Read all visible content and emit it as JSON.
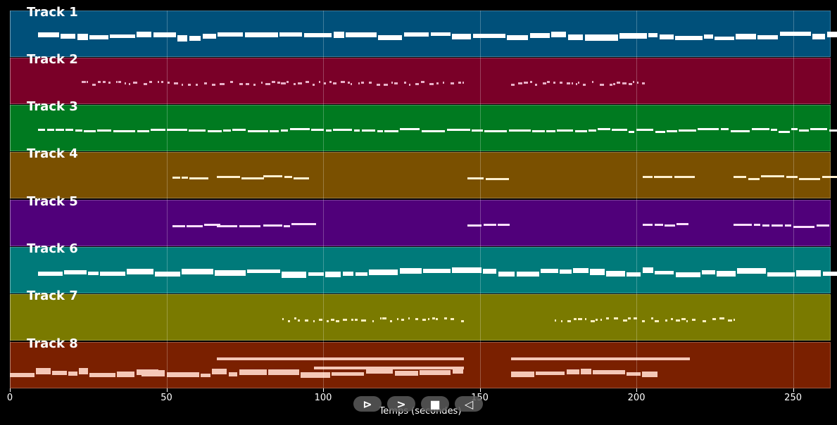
{
  "chart_data": {
    "type": "piano-roll",
    "title": "",
    "xlabel": "Temps (secondes)",
    "ylabel": "",
    "xlim": [
      0,
      262
    ],
    "xticks": [
      0,
      50,
      100,
      150,
      200,
      250
    ],
    "grid": true,
    "tracks": [
      {
        "name": "Track 1",
        "color": "#00507a",
        "note_color": "#ffffff",
        "segments": [
          [
            9,
            262
          ]
        ],
        "density": "dense"
      },
      {
        "name": "Track 2",
        "color": "#7a0028",
        "note_color": "#e8b0c8",
        "segments": [
          [
            23,
            145
          ],
          [
            160,
            203
          ]
        ],
        "density": "sparse"
      },
      {
        "name": "Track 3",
        "color": "#007a20",
        "note_color": "#ffffff",
        "segments": [
          [
            9,
            262
          ]
        ],
        "density": "medium"
      },
      {
        "name": "Track 4",
        "color": "#7a5000",
        "note_color": "#fff0d0",
        "segments": [
          [
            52,
            63
          ],
          [
            66,
            77
          ],
          [
            81,
            92
          ],
          [
            146,
            157
          ],
          [
            202,
            213
          ],
          [
            231,
            260
          ]
        ],
        "density": "medium"
      },
      {
        "name": "Track 5",
        "color": "#50007a",
        "note_color": "#ffe0ff",
        "segments": [
          [
            52,
            63
          ],
          [
            66,
            77
          ],
          [
            81,
            92
          ],
          [
            146,
            157
          ],
          [
            202,
            213
          ],
          [
            231,
            260
          ]
        ],
        "density": "medium"
      },
      {
        "name": "Track 6",
        "color": "#007a7a",
        "note_color": "#ffffff",
        "segments": [
          [
            9,
            262
          ]
        ],
        "density": "dense"
      },
      {
        "name": "Track 7",
        "color": "#7a7a00",
        "note_color": "#fff0c0",
        "segments": [
          [
            87,
            145
          ],
          [
            174,
            232
          ]
        ],
        "density": "sparse"
      },
      {
        "name": "Track 8",
        "color": "#7a2000",
        "note_color": "#f5c8b8",
        "segments": [
          [
            0,
            42
          ],
          [
            42,
            145
          ],
          [
            160,
            203
          ],
          [
            66,
            145
          ],
          [
            160,
            217
          ]
        ],
        "density": "dense"
      }
    ]
  },
  "axis": {
    "xlabel": "Temps (secondes)",
    "ticks": [
      "0",
      "50",
      "100",
      "150",
      "200",
      "250"
    ]
  },
  "tracks": [
    {
      "label": "Track 1"
    },
    {
      "label": "Track 2"
    },
    {
      "label": "Track 3"
    },
    {
      "label": "Track 4"
    },
    {
      "label": "Track 5"
    },
    {
      "label": "Track 6"
    },
    {
      "label": "Track 7"
    },
    {
      "label": "Track 8"
    }
  ],
  "controls": {
    "play": "⊳",
    "next": ">",
    "stop": "■",
    "prev": "◁"
  }
}
